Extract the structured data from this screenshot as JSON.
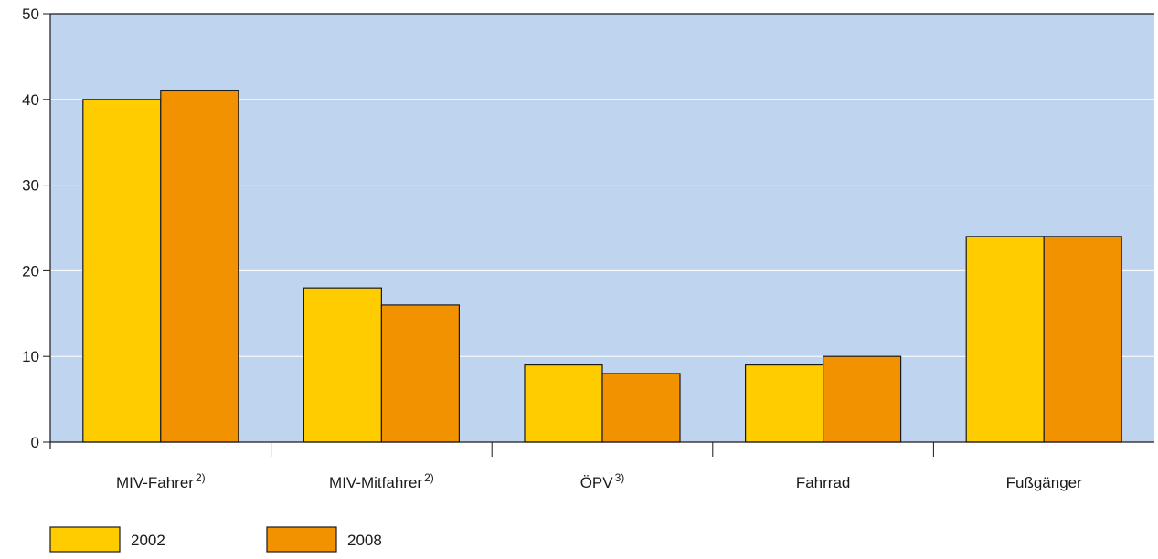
{
  "chart_data": {
    "type": "bar",
    "categories": [
      "MIV-Fahrer",
      "MIV-Mitfahrer",
      "ÖPV",
      "Fahrrad",
      "Fußgänger"
    ],
    "category_footnotes": [
      "2)",
      "2)",
      "3)",
      "",
      ""
    ],
    "series": [
      {
        "name": "2002",
        "values": [
          40,
          18,
          9,
          9,
          24
        ]
      },
      {
        "name": "2008",
        "values": [
          41,
          16,
          8,
          10,
          24
        ]
      }
    ],
    "ylim": [
      0,
      50
    ],
    "yticks": [
      "0",
      "10",
      "20",
      "30",
      "40",
      "50"
    ],
    "grid": true,
    "legend": "bottom-left",
    "title": "",
    "xlabel": "",
    "ylabel": ""
  },
  "colors": {
    "plot_background": "#bfd5ef",
    "gridline": "#ffffff",
    "series": [
      "#ffcc00",
      "#f39200"
    ],
    "bar_border": "#1a1a1a"
  }
}
